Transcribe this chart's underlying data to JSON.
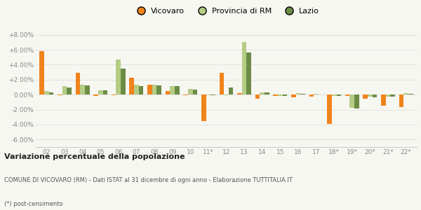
{
  "categories": [
    "02",
    "03",
    "04",
    "05",
    "06",
    "07",
    "08",
    "09",
    "10",
    "11*",
    "12",
    "13",
    "14",
    "15",
    "16",
    "17",
    "18*",
    "19*",
    "20*",
    "21*",
    "22*"
  ],
  "vicovaro": [
    5.8,
    -0.1,
    2.9,
    -0.2,
    -0.1,
    2.3,
    1.3,
    0.5,
    -0.1,
    -3.5,
    2.9,
    0.2,
    -0.5,
    -0.2,
    -0.4,
    -0.3,
    -3.9,
    -0.2,
    -0.5,
    -1.5,
    -1.7
  ],
  "provincia": [
    0.5,
    1.1,
    1.3,
    0.6,
    4.7,
    1.3,
    1.3,
    1.1,
    0.8,
    -0.1,
    -0.1,
    7.0,
    0.3,
    -0.2,
    0.2,
    0.1,
    -0.2,
    -1.8,
    -0.3,
    -0.3,
    0.2
  ],
  "lazio": [
    0.3,
    1.0,
    1.2,
    0.6,
    3.5,
    1.1,
    1.2,
    1.1,
    0.7,
    -0.1,
    1.0,
    5.6,
    0.3,
    -0.2,
    0.1,
    0.0,
    -0.2,
    -1.9,
    -0.4,
    -0.3,
    0.1
  ],
  "color_vicovaro": "#f0841c",
  "color_provincia": "#b5cc85",
  "color_lazio": "#6b8c45",
  "title_bold": "Variazione percentuale della popolazione",
  "subtitle": "COMUNE DI VICOVARO (RM) - Dati ISTAT al 31 dicembre di ogni anno - Elaborazione TUTTITALIA.IT",
  "footnote": "(*) post-censimento",
  "ylim": [
    -7.0,
    9.0
  ],
  "yticks": [
    -6.0,
    -4.0,
    -2.0,
    0.0,
    2.0,
    4.0,
    6.0,
    8.0
  ],
  "bg_color": "#f7f7f2",
  "grid_color": "#d8d8d8"
}
